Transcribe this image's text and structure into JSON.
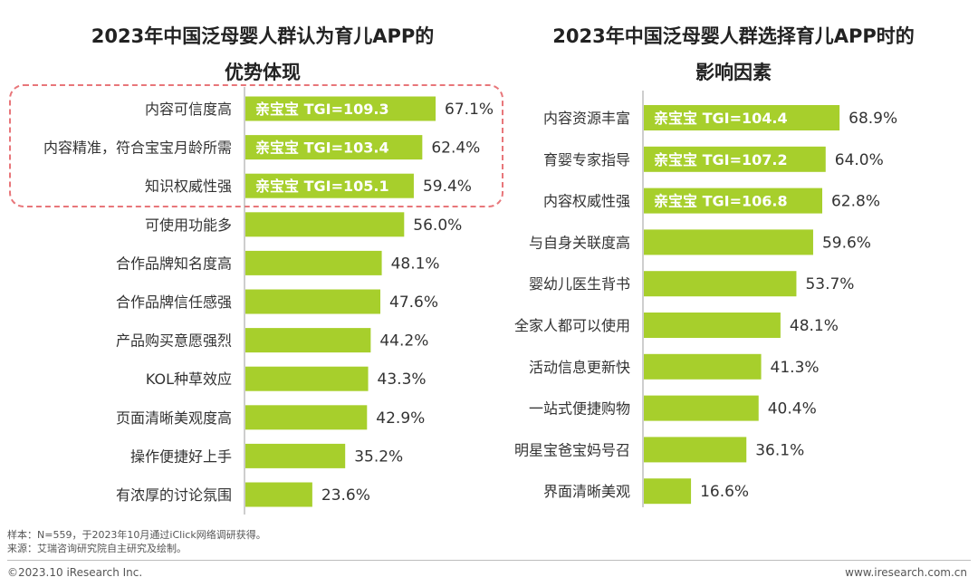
{
  "colors": {
    "bar": "#a7cf2c",
    "tgi_text": "#ffffff",
    "axis": "#9e9e9e",
    "highlight_border": "#e8767a"
  },
  "chart_data": [
    {
      "type": "bar",
      "orientation": "horizontal",
      "title": "2023年中国泛母婴人群认为育儿APP的优势体现",
      "title_lines": [
        "2023年中国泛母婴人群认为育儿APP的",
        "优势体现"
      ],
      "categories": [
        "内容可信度高",
        "内容精准，符合宝宝月龄所需",
        "知识权威性强",
        "可使用功能多",
        "合作品牌知名度高",
        "合作品牌信任感强",
        "产品购买意愿强烈",
        "KOL种草效应",
        "页面清晰美观度高",
        "操作便捷好上手",
        "有浓厚的讨论氛围"
      ],
      "values": [
        67.1,
        62.4,
        59.4,
        56.0,
        48.1,
        47.6,
        44.2,
        43.3,
        42.9,
        35.2,
        23.6
      ],
      "value_labels": [
        "67.1%",
        "62.4%",
        "59.4%",
        "56.0%",
        "48.1%",
        "47.6%",
        "44.2%",
        "43.3%",
        "42.9%",
        "35.2%",
        "23.6%"
      ],
      "bar_annotations": [
        "亲宝宝  TGI=109.3",
        "亲宝宝  TGI=103.4",
        "亲宝宝  TGI=105.1",
        "",
        "",
        "",
        "",
        "",
        "",
        "",
        ""
      ],
      "highlighted_categories": [
        "内容可信度高",
        "内容精准，符合宝宝月龄所需",
        "知识权威性强"
      ],
      "xlim": [
        0,
        92
      ],
      "unit": "%"
    },
    {
      "type": "bar",
      "orientation": "horizontal",
      "title": "2023年中国泛母婴人群选择育儿APP时的影响因素",
      "title_lines": [
        "2023年中国泛母婴人群选择育儿APP时的",
        "影响因素"
      ],
      "categories": [
        "内容资源丰富",
        "育婴专家指导",
        "内容权威性强",
        "与自身关联度高",
        "婴幼儿医生背书",
        "全家人都可以使用",
        "活动信息更新快",
        "一站式便捷购物",
        "明星宝爸宝妈号召",
        "界面清晰美观"
      ],
      "values": [
        68.9,
        64.0,
        62.8,
        59.6,
        53.7,
        48.1,
        41.3,
        40.4,
        36.1,
        16.6
      ],
      "value_labels": [
        "68.9%",
        "64.0%",
        "62.8%",
        "59.6%",
        "53.7%",
        "48.1%",
        "41.3%",
        "40.4%",
        "36.1%",
        "16.6%"
      ],
      "bar_annotations": [
        "亲宝宝  TGI=104.4",
        "亲宝宝  TGI=107.2",
        "亲宝宝  TGI=106.8",
        "",
        "",
        "",
        "",
        "",
        "",
        ""
      ],
      "xlim": [
        0,
        95
      ],
      "unit": "%"
    }
  ],
  "footer": {
    "sample_note": "样本：N=559，于2023年10月通过iClick网络调研获得。",
    "source_note": "来源：艾瑞咨询研究院自主研究及绘制。",
    "copyright": "©2023.10 iResearch Inc.",
    "website": "www.iresearch.com.cn"
  }
}
